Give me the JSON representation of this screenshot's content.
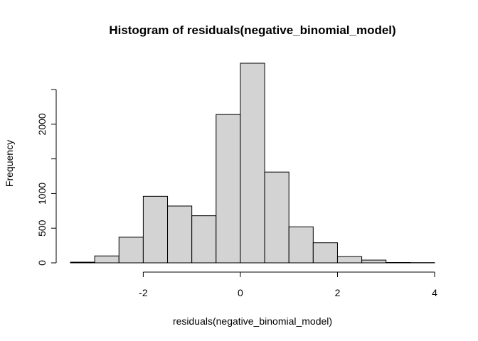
{
  "chart_data": {
    "type": "bar",
    "title": "Histogram of residuals(negative_binomial_model)",
    "xlabel": "residuals(negative_binomial_model)",
    "ylabel": "Frequency",
    "bin_width": 0.5,
    "bins": [
      {
        "start": -3.5,
        "end": -3.0,
        "value": 10
      },
      {
        "start": -3.0,
        "end": -2.5,
        "value": 100
      },
      {
        "start": -2.5,
        "end": -2.0,
        "value": 370
      },
      {
        "start": -2.0,
        "end": -1.5,
        "value": 960
      },
      {
        "start": -1.5,
        "end": -1.0,
        "value": 820
      },
      {
        "start": -1.0,
        "end": -0.5,
        "value": 680
      },
      {
        "start": -0.5,
        "end": 0.0,
        "value": 2140
      },
      {
        "start": 0.0,
        "end": 0.5,
        "value": 2880
      },
      {
        "start": 0.5,
        "end": 1.0,
        "value": 1310
      },
      {
        "start": 1.0,
        "end": 1.5,
        "value": 520
      },
      {
        "start": 1.5,
        "end": 2.0,
        "value": 290
      },
      {
        "start": 2.0,
        "end": 2.5,
        "value": 90
      },
      {
        "start": 2.5,
        "end": 3.0,
        "value": 40
      },
      {
        "start": 3.0,
        "end": 3.5,
        "value": 5
      },
      {
        "start": 3.5,
        "end": 4.0,
        "value": 3
      }
    ],
    "xlim": [
      -3.5,
      4.0
    ],
    "ylim": [
      0,
      2880
    ],
    "x_ticks": [
      {
        "value": -2,
        "label": "-2"
      },
      {
        "value": 0,
        "label": "0"
      },
      {
        "value": 2,
        "label": "2"
      },
      {
        "value": 4,
        "label": "4"
      }
    ],
    "y_ticks": [
      {
        "value": 0,
        "label": "0"
      },
      {
        "value": 500,
        "label": "500"
      },
      {
        "value": 1000,
        "label": "1000"
      },
      {
        "value": 1500,
        "label": ""
      },
      {
        "value": 2000,
        "label": "2000"
      },
      {
        "value": 2500,
        "label": ""
      }
    ],
    "grid": false,
    "bar_fill": "#d3d3d3",
    "bar_stroke": "#000000"
  }
}
